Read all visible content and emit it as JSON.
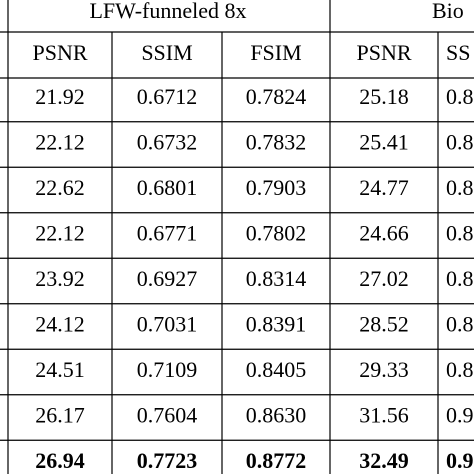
{
  "table": {
    "groups": [
      "LFW-funneled 8x",
      "Bio"
    ],
    "columns": [
      "PSNR",
      "SSIM",
      "FSIM",
      "PSNR",
      "SS"
    ],
    "rows": [
      [
        "21.92",
        "0.6712",
        "0.7824",
        "25.18",
        "0.8"
      ],
      [
        "22.12",
        "0.6732",
        "0.7832",
        "25.41",
        "0.8"
      ],
      [
        "22.62",
        "0.6801",
        "0.7903",
        "24.77",
        "0.8"
      ],
      [
        "22.12",
        "0.6771",
        "0.7802",
        "24.66",
        "0.8"
      ],
      [
        "23.92",
        "0.6927",
        "0.8314",
        "27.02",
        "0.8"
      ],
      [
        "24.12",
        "0.7031",
        "0.8391",
        "28.52",
        "0.8"
      ],
      [
        "24.51",
        "0.7109",
        "0.8405",
        "29.33",
        "0.8"
      ],
      [
        "26.17",
        "0.7604",
        "0.8630",
        "31.56",
        "0.9"
      ],
      [
        "26.94",
        "0.7723",
        "0.8772",
        "32.49",
        "0.9"
      ]
    ]
  }
}
